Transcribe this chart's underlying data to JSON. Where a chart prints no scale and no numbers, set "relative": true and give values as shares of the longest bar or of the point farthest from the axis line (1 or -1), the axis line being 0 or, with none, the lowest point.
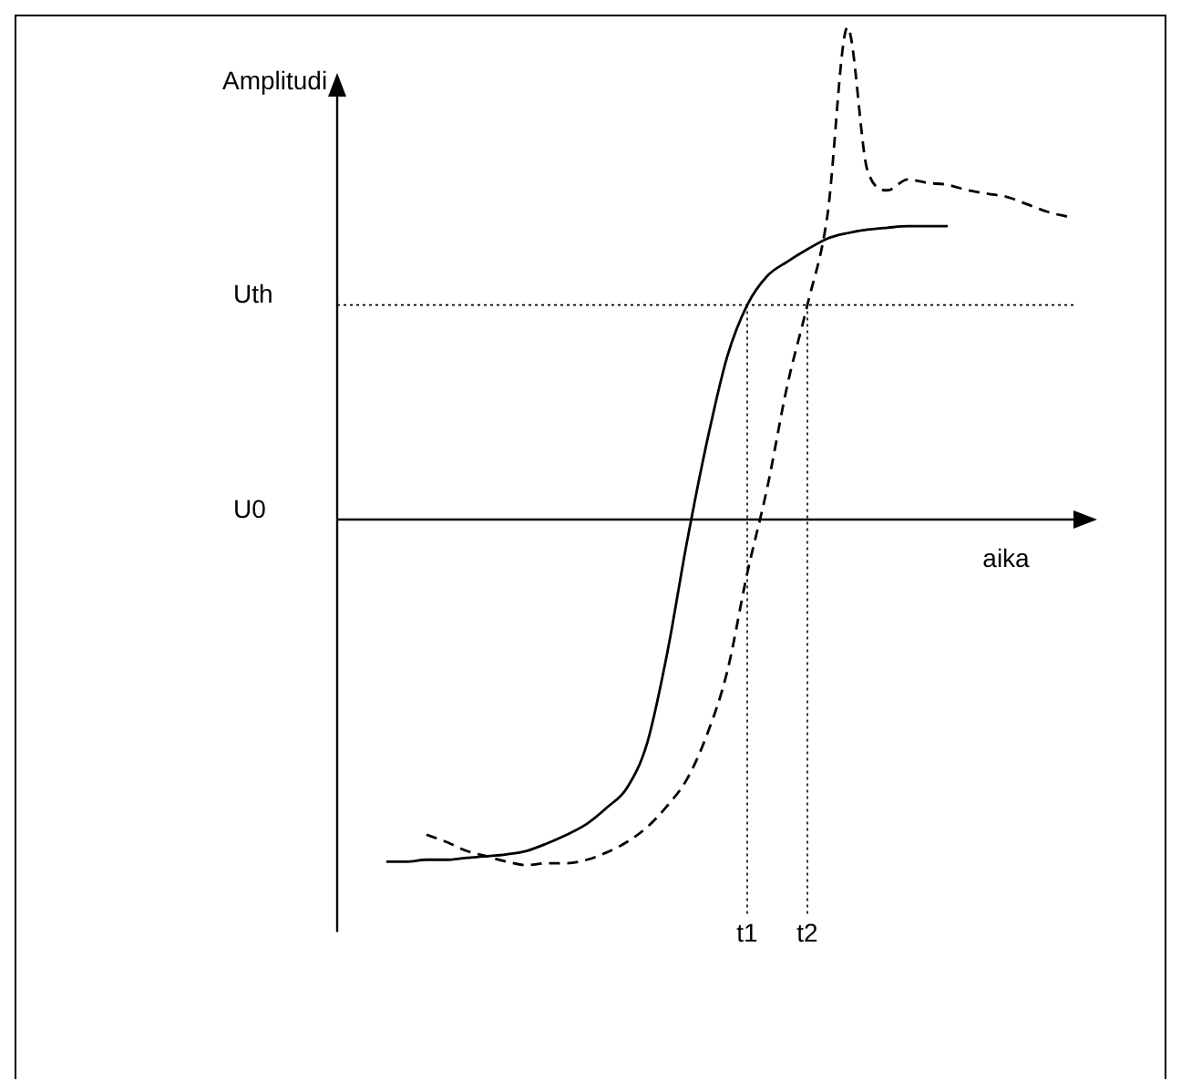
{
  "chart_data": {
    "type": "line",
    "relative": true,
    "ylabel": "Amplitudi",
    "xlabel": "aika",
    "legend": false,
    "marker": "none",
    "categories": [
      null,
      null,
      null,
      null,
      null,
      null,
      null,
      null,
      null,
      null,
      null,
      null,
      null,
      null,
      null,
      null,
      null,
      null,
      null,
      null,
      "t1",
      null,
      null,
      "t2",
      null,
      null,
      null,
      null,
      null,
      null,
      null,
      null,
      null,
      null,
      null,
      null,
      null
    ],
    "series": [
      {
        "color": "#000000",
        "line_style": "solid",
        "values": [
          null,
          null,
          -0.695,
          -0.695,
          -0.691,
          -0.691,
          -0.687,
          -0.684,
          -0.68,
          -0.673,
          -0.658,
          -0.64,
          -0.618,
          -0.585,
          -0.545,
          -0.455,
          -0.273,
          -0.044,
          0.16,
          0.331,
          0.436,
          0.495,
          0.524,
          0.549,
          0.571,
          0.582,
          0.589,
          0.593,
          0.596,
          0.596,
          0.596,
          null,
          null,
          null,
          null,
          null,
          null
        ]
      },
      {
        "color": "#000000",
        "line_style": "dashed",
        "values": [
          null,
          null,
          null,
          null,
          -0.64,
          -0.655,
          -0.673,
          -0.684,
          -0.695,
          -0.702,
          -0.698,
          -0.698,
          -0.691,
          -0.676,
          -0.655,
          -0.625,
          -0.582,
          -0.527,
          -0.436,
          -0.309,
          -0.109,
          0.065,
          0.273,
          0.436,
          0.618,
          1,
          0.709,
          0.669,
          0.691,
          0.684,
          0.68,
          0.669,
          0.662,
          0.655,
          0.64,
          0.625,
          0.615
        ]
      }
    ],
    "ref_lines": [
      {
        "axis": "y",
        "value": 0,
        "label": "U0",
        "line_style": "solid"
      },
      {
        "axis": "y",
        "value": 0.436,
        "label": "Uth",
        "line_style": "dotted"
      },
      {
        "axis": "x",
        "value": "t1",
        "line_style": "dotted"
      },
      {
        "axis": "x",
        "value": "t2",
        "line_style": "dotted"
      }
    ]
  }
}
